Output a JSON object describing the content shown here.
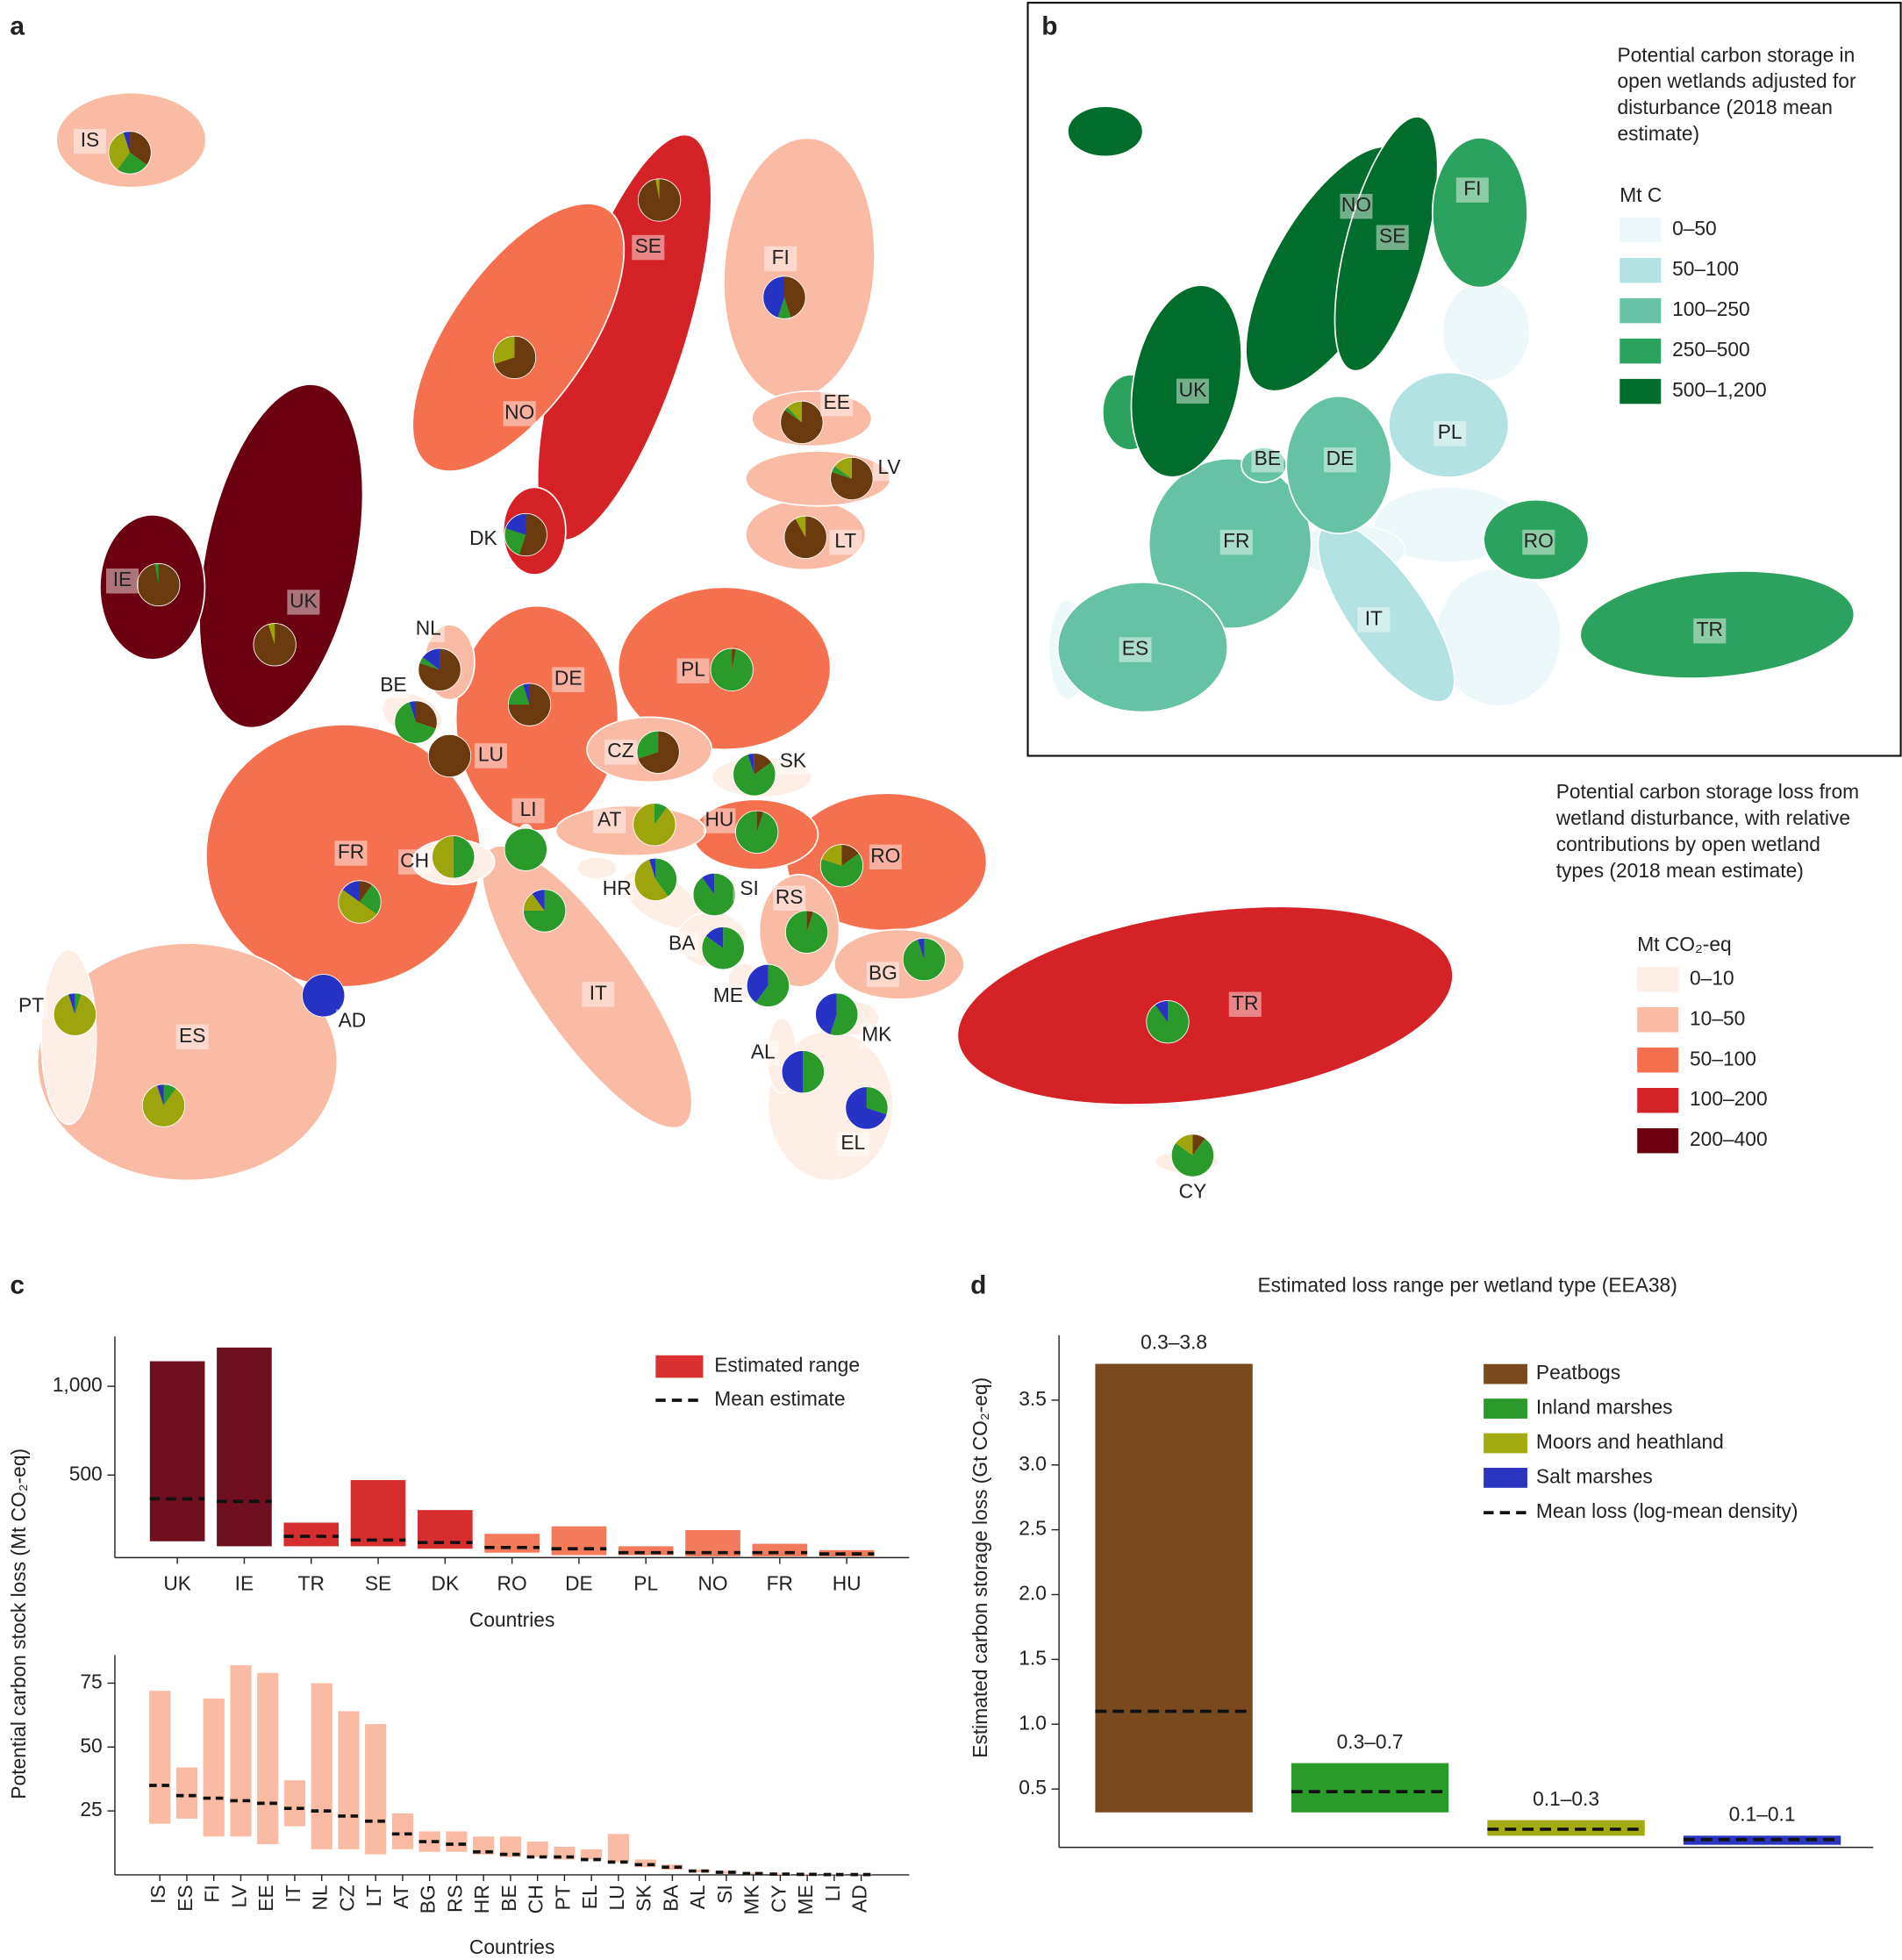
{
  "chart_data": [
    {
      "type": "map",
      "panel_label": "a",
      "legend_title": [
        "Potential carbon storage loss from",
        "wetland disturbance, with relative",
        "contributions by open wetland",
        "types (2018 mean estimate)"
      ],
      "legend_unit": "Mt CO₂-eq",
      "classes": [
        {
          "label": "0–10",
          "color": "#fdeee6"
        },
        {
          "label": "10–50",
          "color": "#f9bba3"
        },
        {
          "label": "50–100",
          "color": "#f4704f"
        },
        {
          "label": "100–200",
          "color": "#d42226"
        },
        {
          "label": "200–400",
          "color": "#6b0010"
        }
      ],
      "pie_colors": [
        "#6b3a0f",
        "#2a9a2a",
        "#9ea50c",
        "#2633c4"
      ],
      "countries": [
        {
          "code": "IS",
          "color": "#f9bba3",
          "shares": [
            35,
            25,
            35,
            5
          ]
        },
        {
          "code": "SE",
          "color": "#d42226",
          "shares": [
            97,
            0,
            3,
            0
          ]
        },
        {
          "code": "FI",
          "color": "#f9bba3",
          "shares": [
            45,
            10,
            0,
            45
          ]
        },
        {
          "code": "NO",
          "color": "#f4704f",
          "shares": [
            70,
            0,
            30,
            0
          ]
        },
        {
          "code": "EE",
          "color": "#f9bba3",
          "shares": [
            85,
            3,
            12,
            0
          ]
        },
        {
          "code": "LV",
          "color": "#f9bba3",
          "shares": [
            80,
            5,
            15,
            0
          ]
        },
        {
          "code": "LT",
          "color": "#f9bba3",
          "shares": [
            92,
            0,
            8,
            0
          ]
        },
        {
          "code": "DK",
          "color": "#d42226",
          "shares": [
            55,
            25,
            0,
            20
          ]
        },
        {
          "code": "IE",
          "color": "#6b0010",
          "shares": [
            97,
            3,
            0,
            0
          ]
        },
        {
          "code": "UK",
          "color": "#6b0010",
          "shares": [
            95,
            0,
            5,
            0
          ]
        },
        {
          "code": "NL",
          "color": "#f9bba3",
          "shares": [
            80,
            5,
            0,
            15
          ]
        },
        {
          "code": "DE",
          "color": "#f4704f",
          "shares": [
            75,
            20,
            0,
            5
          ]
        },
        {
          "code": "PL",
          "color": "#f4704f",
          "shares": [
            3,
            97,
            0,
            0
          ]
        },
        {
          "code": "BE",
          "color": "#fdeee6",
          "shares": [
            30,
            65,
            0,
            5
          ]
        },
        {
          "code": "LU",
          "color": "#fdeee6",
          "shares": [
            100,
            0,
            0,
            0
          ]
        },
        {
          "code": "CZ",
          "color": "#f9bba3",
          "shares": [
            70,
            30,
            0,
            0
          ]
        },
        {
          "code": "SK",
          "color": "#fdeee6",
          "shares": [
            15,
            80,
            0,
            5
          ]
        },
        {
          "code": "AT",
          "color": "#f9bba3",
          "shares": [
            0,
            10,
            90,
            0
          ]
        },
        {
          "code": "HU",
          "color": "#f4704f",
          "shares": [
            5,
            95,
            0,
            0
          ]
        },
        {
          "code": "LI",
          "color": "#fdeee6",
          "shares": [
            0,
            100,
            0,
            0
          ]
        },
        {
          "code": "CH",
          "color": "#fdeee6",
          "shares": [
            0,
            50,
            50,
            0
          ]
        },
        {
          "code": "FR",
          "color": "#f4704f",
          "shares": [
            10,
            25,
            50,
            15
          ]
        },
        {
          "code": "RO",
          "color": "#f4704f",
          "shares": [
            15,
            65,
            20,
            0
          ]
        },
        {
          "code": "HR",
          "color": "#fdeee6",
          "shares": [
            0,
            40,
            55,
            5
          ]
        },
        {
          "code": "SI",
          "color": "#fdeee6",
          "shares": [
            0,
            90,
            0,
            10
          ]
        },
        {
          "code": "RS",
          "color": "#f9bba3",
          "shares": [
            5,
            95,
            0,
            0
          ]
        },
        {
          "code": "IT",
          "color": "#f9bba3",
          "shares": [
            0,
            75,
            15,
            10
          ]
        },
        {
          "code": "BA",
          "color": "#fdeee6",
          "shares": [
            0,
            85,
            0,
            15
          ]
        },
        {
          "code": "BG",
          "color": "#f9bba3",
          "shares": [
            0,
            95,
            0,
            5
          ]
        },
        {
          "code": "PT",
          "color": "#fdeee6",
          "shares": [
            0,
            5,
            90,
            5
          ]
        },
        {
          "code": "ES",
          "color": "#f9bba3",
          "shares": [
            0,
            10,
            85,
            5
          ]
        },
        {
          "code": "AD",
          "color": "#fdeee6",
          "shares": [
            0,
            0,
            0,
            100
          ]
        },
        {
          "code": "TR",
          "color": "#d42226",
          "shares": [
            0,
            90,
            0,
            10
          ]
        },
        {
          "code": "ME",
          "color": "#fdeee6",
          "shares": [
            0,
            60,
            0,
            40
          ]
        },
        {
          "code": "MK",
          "color": "#fdeee6",
          "shares": [
            0,
            55,
            0,
            45
          ]
        },
        {
          "code": "AL",
          "color": "#fdeee6",
          "shares": [
            0,
            50,
            0,
            50
          ]
        },
        {
          "code": "EL",
          "color": "#fdeee6",
          "shares": [
            0,
            30,
            0,
            70
          ]
        },
        {
          "code": "CY",
          "color": "#fdeee6",
          "shares": [
            10,
            75,
            15,
            0
          ]
        }
      ]
    },
    {
      "type": "map",
      "panel_label": "b",
      "legend_title": [
        "Potential carbon storage in",
        "open wetlands adjusted for",
        "disturbance (2018 mean",
        "estimate)"
      ],
      "legend_unit": "Mt C",
      "classes": [
        {
          "label": "0–50",
          "color": "#edf8fb"
        },
        {
          "label": "50–100",
          "color": "#b2e2e2"
        },
        {
          "label": "100–250",
          "color": "#66c2a4"
        },
        {
          "label": "250–500",
          "color": "#2ca25f"
        },
        {
          "label": "500–1,200",
          "color": "#006d2c"
        }
      ],
      "countries": [
        {
          "code": "NO",
          "color": "#006d2c"
        },
        {
          "code": "SE",
          "color": "#006d2c"
        },
        {
          "code": "FI",
          "color": "#2ca25f"
        },
        {
          "code": "UK",
          "color": "#006d2c"
        },
        {
          "code": "BE",
          "color": "#66c2a4"
        },
        {
          "code": "DE",
          "color": "#66c2a4"
        },
        {
          "code": "PL",
          "color": "#b2e2e2"
        },
        {
          "code": "FR",
          "color": "#66c2a4"
        },
        {
          "code": "RO",
          "color": "#2ca25f"
        },
        {
          "code": "IT",
          "color": "#b2e2e2"
        },
        {
          "code": "ES",
          "color": "#66c2a4"
        },
        {
          "code": "TR",
          "color": "#2ca25f"
        }
      ]
    },
    {
      "type": "range-bar",
      "panel_label": "c",
      "y_label": "Potential carbon stock loss (Mt CO₂-eq)",
      "x_label": "Countries",
      "categories": [
        "UK",
        "IE",
        "TR",
        "SE",
        "DK",
        "RO",
        "DE",
        "PL",
        "NO",
        "FR",
        "HU"
      ],
      "bar_colors": [
        "#6e1020",
        "#6e1020",
        "#d62e2e",
        "#d62e2e",
        "#d62e2e",
        "#f47a5c",
        "#f47a5c",
        "#f47a5c",
        "#f47a5c",
        "#f47a5c",
        "#f47a5c"
      ],
      "series": [
        {
          "name": "Estimated range",
          "color": "#d93030",
          "low": [
            127,
            99,
            99,
            99,
            85,
            63,
            49,
            49,
            42,
            42,
            42
          ],
          "high": [
            1141,
            1218,
            232,
            472,
            303,
            169,
            211,
            99,
            190,
            113,
            77
          ]
        },
        {
          "name": "Mean estimate",
          "values": [
            366,
            352,
            155,
            134,
            120,
            92,
            85,
            63,
            63,
            63,
            56
          ]
        }
      ],
      "ylim": [
        35,
        1280
      ],
      "yticks": [
        500,
        {
          "value": 1000,
          "label": "1,000"
        }
      ]
    },
    {
      "type": "range-bar",
      "x_label": "Countries",
      "categories": [
        "IS",
        "ES",
        "FI",
        "LV",
        "EE",
        "IT",
        "NL",
        "CZ",
        "LT",
        "AT",
        "BG",
        "RS",
        "HR",
        "BE",
        "CH",
        "PT",
        "EL",
        "LU",
        "SK",
        "BA",
        "AL",
        "SI",
        "MK",
        "CY",
        "ME",
        "LI",
        "AD"
      ],
      "color": "#f9bba3",
      "series": [
        {
          "low": [
            20,
            22,
            15,
            15,
            12,
            19,
            10,
            10,
            8,
            10,
            9,
            9,
            8,
            7,
            7,
            6,
            6,
            5,
            3,
            2,
            1,
            0.5,
            0.3,
            0,
            0,
            0,
            0
          ],
          "high": [
            72,
            42,
            69,
            82,
            79,
            37,
            75,
            64,
            59,
            24,
            17,
            17,
            15,
            15,
            13,
            11,
            10,
            16,
            6,
            4,
            2,
            1.5,
            0.8,
            0.5,
            0.4,
            0.2,
            0.2
          ]
        },
        {
          "values": [
            35,
            31,
            30,
            29,
            28,
            26,
            25,
            23,
            21,
            16,
            13,
            12,
            9,
            8,
            7,
            7,
            6,
            5,
            4,
            3,
            1.5,
            1,
            0.5,
            0.3,
            0.2,
            0.1,
            0.1
          ]
        }
      ],
      "ylim": [
        0,
        86
      ],
      "yticks": [
        25,
        50,
        75
      ]
    },
    {
      "type": "range-bar",
      "panel_label": "d",
      "title": "Estimated loss range per wetland type (EEA38)",
      "y_label": "Estimated carbon storage loss (Gt CO₂-eq)",
      "categories": [
        "Peatbogs",
        "Inland marshes",
        "Moors and heathland",
        "Salt marshes"
      ],
      "bar_colors": [
        "#7a4a1e",
        "#2a9a2a",
        "#a3ab12",
        "#2a35c0"
      ],
      "series": [
        {
          "low": [
            0.32,
            0.32,
            0.14,
            0.07
          ],
          "high": [
            3.78,
            0.7,
            0.26,
            0.14
          ],
          "value_labels": [
            "0.3–3.8",
            "0.3–0.7",
            "0.1–0.3",
            "0.1–0.1"
          ]
        },
        {
          "name": "Mean loss (log-mean density)",
          "values": [
            1.1,
            0.48,
            0.19,
            0.11
          ]
        }
      ],
      "ylim": [
        0.05,
        4.0
      ],
      "yticks": [
        0.5,
        {
          "value": 1,
          "label": "1.0"
        },
        1.5,
        {
          "value": 2,
          "label": "2.0"
        },
        2.5,
        {
          "value": 3,
          "label": "3.0"
        },
        3.5
      ]
    }
  ]
}
